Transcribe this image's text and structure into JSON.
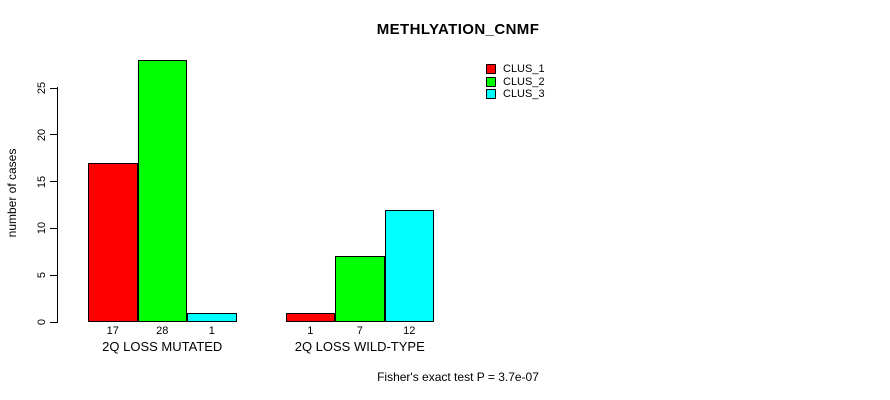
{
  "chart_data": {
    "type": "bar",
    "title": "METHLYATION_CNMF",
    "ylabel": "number of cases",
    "footer": "Fisher's exact test P = 3.7e-07",
    "categories": [
      "2Q LOSS MUTATED",
      "2Q LOSS WILD-TYPE"
    ],
    "series": [
      {
        "name": "CLUS_1",
        "color": "#ff0000",
        "values": [
          17,
          1
        ]
      },
      {
        "name": "CLUS_2",
        "color": "#00ff00",
        "values": [
          28,
          7
        ]
      },
      {
        "name": "CLUS_3",
        "color": "#00ffff",
        "values": [
          1,
          12
        ]
      }
    ],
    "yticks": [
      0,
      5,
      10,
      15,
      20,
      25
    ],
    "ylim": [
      0,
      28
    ],
    "bar_value_labels": [
      [
        17,
        28,
        1
      ],
      [
        1,
        7,
        12
      ]
    ],
    "grid": false,
    "legend_position": "top-right-inside",
    "colors": {
      "bar_border": "#000000",
      "axis": "#000000",
      "background": "#ffffff"
    }
  }
}
